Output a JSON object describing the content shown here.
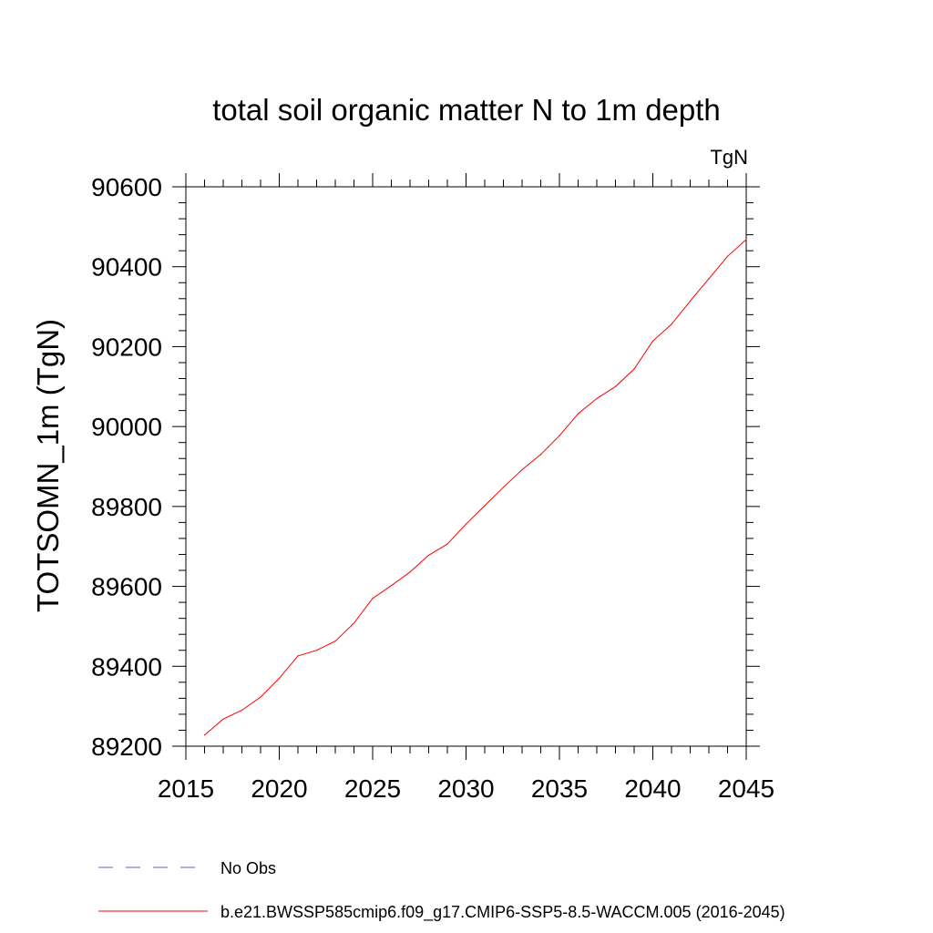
{
  "chart_data": {
    "type": "line",
    "title": "total soil organic matter N to 1m depth",
    "units_label": "TgN",
    "xlabel": "",
    "ylabel": "TOTSOMN_1m  (TgN)",
    "xlim": [
      2015,
      2045
    ],
    "ylim": [
      89200,
      90600
    ],
    "x_ticks": [
      2015,
      2020,
      2025,
      2030,
      2035,
      2040,
      2045
    ],
    "y_ticks": [
      89200,
      89400,
      89600,
      89800,
      90000,
      90200,
      90400,
      90600
    ],
    "x_minor_step": 1,
    "y_minor_step": 40,
    "grid": false,
    "legend_position": "bottom",
    "series": [
      {
        "name": "b.e21.BWSSP585cmip6.f09_g17.CMIP6-SSP5-8.5-WACCM.005 (2016-2045)",
        "color": "#ff0000",
        "dash": "solid",
        "x": [
          2016,
          2017,
          2018,
          2019,
          2020,
          2021,
          2022,
          2023,
          2024,
          2025,
          2026,
          2027,
          2028,
          2029,
          2030,
          2031,
          2032,
          2033,
          2034,
          2035,
          2036,
          2037,
          2038,
          2039,
          2040,
          2041,
          2042,
          2043,
          2044,
          2045
        ],
        "values": [
          89228,
          89268,
          89290,
          89323,
          89370,
          89426,
          89440,
          89463,
          89508,
          89570,
          89602,
          89636,
          89678,
          89706,
          89756,
          89802,
          89848,
          89892,
          89930,
          89977,
          90032,
          90070,
          90100,
          90144,
          90214,
          90256,
          90314,
          90370,
          90426,
          90468
        ]
      }
    ],
    "legend": [
      {
        "label": "No Obs",
        "color": "#6a5acd",
        "dash": "dashed"
      },
      {
        "label": "b.e21.BWSSP585cmip6.f09_g17.CMIP6-SSP5-8.5-WACCM.005 (2016-2045)",
        "color": "#ff0000",
        "dash": "solid"
      }
    ]
  }
}
